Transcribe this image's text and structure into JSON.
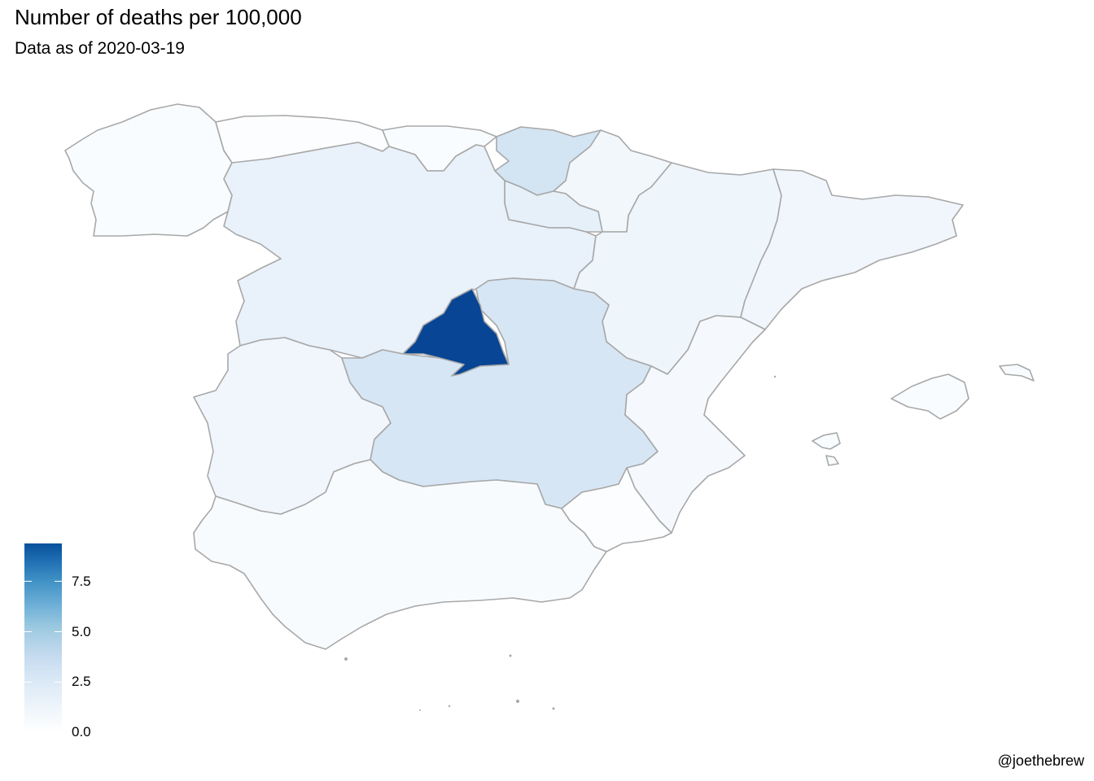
{
  "title": "Number of deaths per 100,000",
  "subtitle": "Data as of 2020-03-19",
  "caption": "@joethebrew",
  "legend": {
    "ticks": [
      {
        "value": 7.5,
        "label": "7.5"
      },
      {
        "value": 5.0,
        "label": "5.0"
      },
      {
        "value": 2.5,
        "label": "2.5"
      },
      {
        "value": 0.0,
        "label": "0.0"
      }
    ],
    "min": 0,
    "max": 9.4,
    "palette": "Blues"
  },
  "colors": {
    "border": "#a8a8a8",
    "scale_low": "#ffffff",
    "scale_high": "#08519c"
  },
  "chart_data": {
    "type": "choropleth",
    "title": "Number of deaths per 100,000",
    "subtitle": "Data as of 2020-03-19",
    "legend_placement": "bottom-left",
    "regions_estimated_value": {
      "Madrid": 9.4,
      "Castilla-La Mancha": 2.8,
      "Pais Vasco": 3.0,
      "La Rioja": 1.8,
      "Castilla y Leon": 1.6,
      "Aragon": 1.2,
      "Cataluna": 1.1,
      "Extremadura": 1.0,
      "Navarra": 0.9,
      "Comunitat Valenciana": 0.7,
      "Andalucia": 0.5,
      "Cantabria": 0.4,
      "Galicia": 0.4,
      "Islas Baleares": 0.4,
      "Asturias": 0.2,
      "Murcia": 0.2
    }
  }
}
